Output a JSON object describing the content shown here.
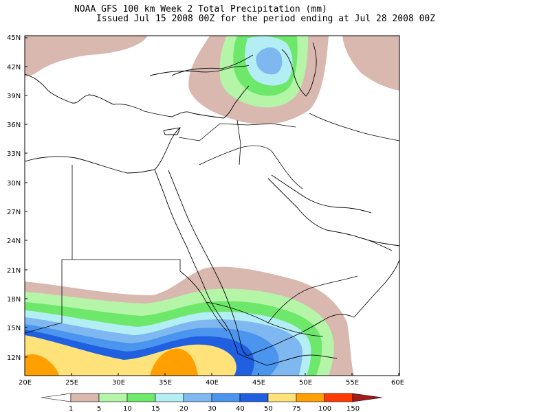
{
  "title": {
    "line1": "NOAA GFS 100 km Week 2 Total Precipitation (mm)",
    "line2": "Issued Jul 15 2008 00Z for the period ending at Jul 28 2008 00Z"
  },
  "axes": {
    "lat_labels": [
      "45N",
      "42N",
      "39N",
      "36N",
      "33N",
      "30N",
      "27N",
      "24N",
      "21N",
      "18N",
      "15N",
      "12N"
    ],
    "lon_labels": [
      "20E",
      "25E",
      "30E",
      "35E",
      "40E",
      "45E",
      "50E",
      "55E",
      "60E"
    ]
  },
  "legend": {
    "labels": [
      "1",
      "5",
      "10",
      "15",
      "20",
      "30",
      "40",
      "50",
      "75",
      "100",
      "150"
    ],
    "colors": [
      "#ffffff",
      "#d9b8b0",
      "#b5f5a8",
      "#6ee86b",
      "#b3eef5",
      "#7fb8f0",
      "#4b95ee",
      "#1f5fe0",
      "#ffe27a",
      "#ff9f00",
      "#ff3a00",
      "#a51a1a"
    ]
  }
}
